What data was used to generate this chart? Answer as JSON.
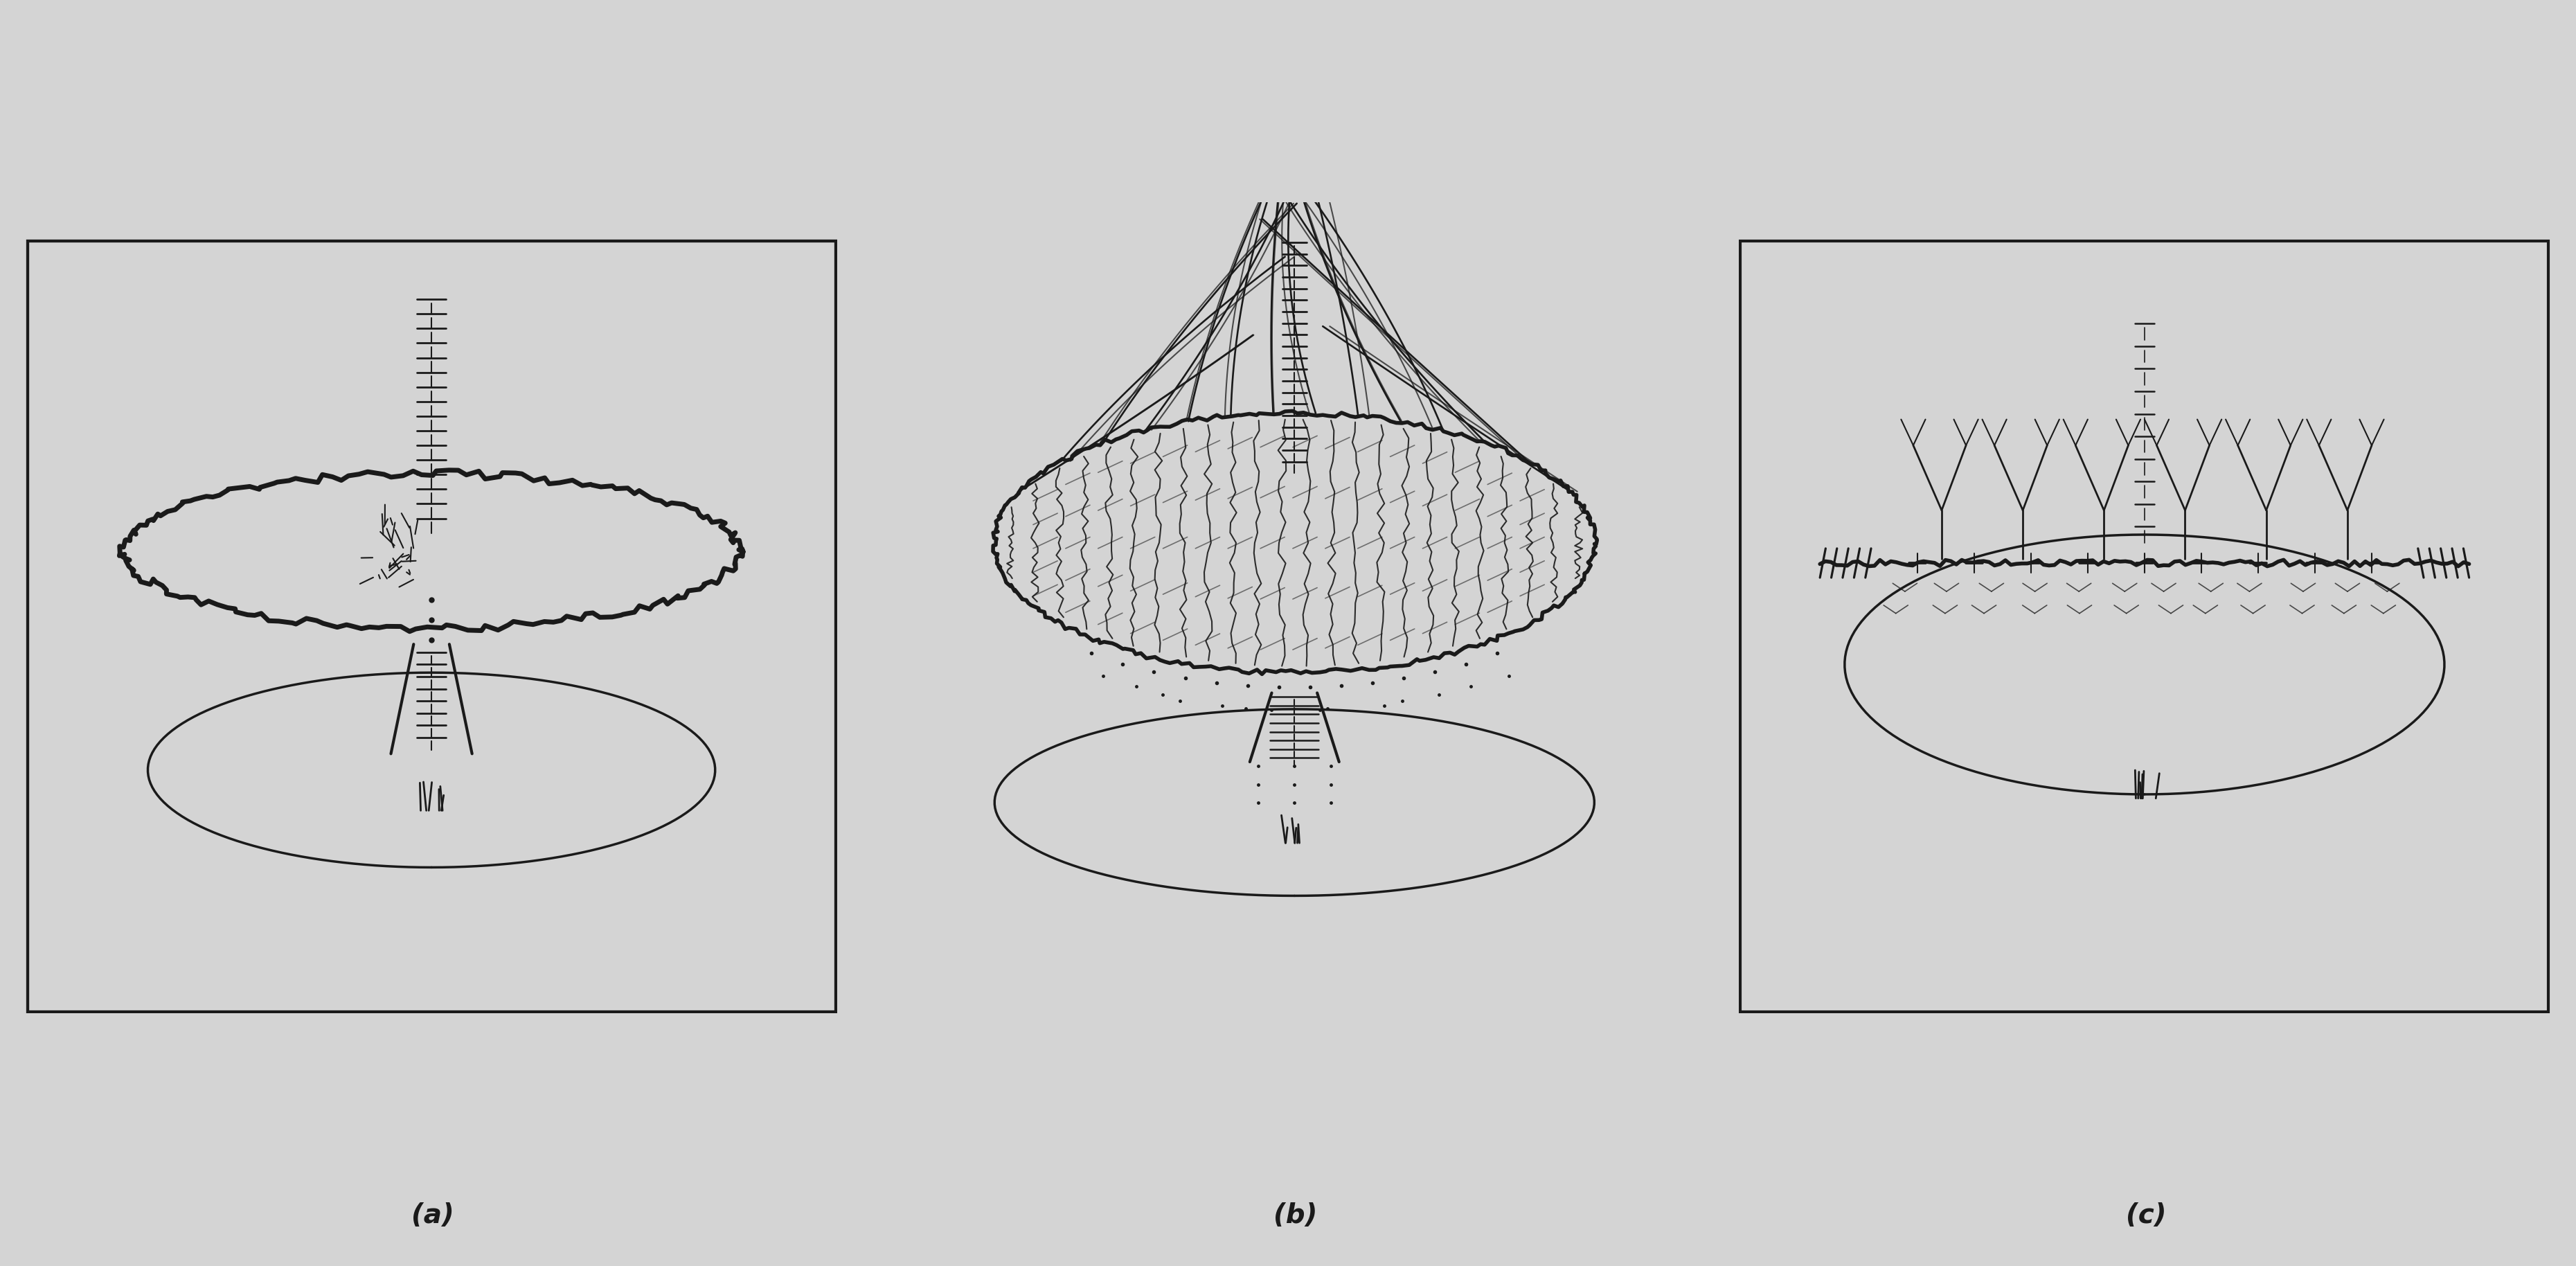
{
  "background_color": "#d4d4d4",
  "panel_bg": "#cecece",
  "panel_bg_c": "#d4d4d4",
  "ink_color": "#1a1a1a",
  "label_a": "(a)",
  "label_b": "(b)",
  "label_c": "(c)",
  "label_fontsize": 28,
  "label_fontweight": "bold",
  "fig_width": 37.2,
  "fig_height": 18.28
}
